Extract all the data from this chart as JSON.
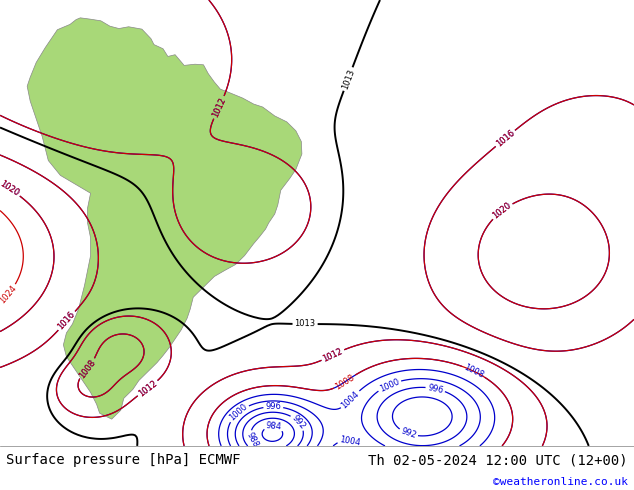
{
  "title_left": "Surface pressure [hPa] ECMWF",
  "title_right": "Th 02-05-2024 12:00 UTC (12+00)",
  "watermark": "©weatheronline.co.uk",
  "bg_color": "#c8dff0",
  "land_color": "#a8d878",
  "border_color": "#888888",
  "contour_blue_color": "#0000cc",
  "contour_black_color": "#000000",
  "contour_red_color": "#cc0000",
  "font_size_title": 10,
  "font_size_watermark": 8,
  "fig_width": 6.34,
  "fig_height": 4.9
}
